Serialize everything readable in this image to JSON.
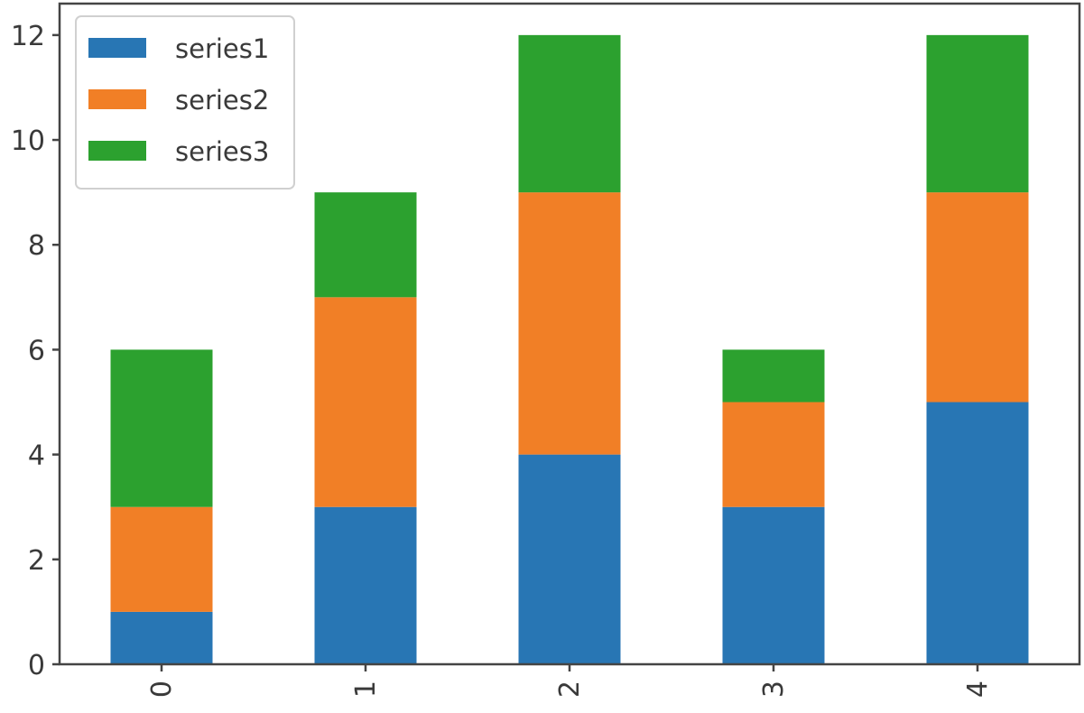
{
  "chart_data": {
    "type": "bar",
    "stacked": true,
    "categories": [
      "0",
      "1",
      "2",
      "3",
      "4"
    ],
    "series": [
      {
        "name": "series1",
        "color": "#2876b4",
        "values": [
          1,
          3,
          4,
          3,
          5
        ]
      },
      {
        "name": "series2",
        "color": "#f17f26",
        "values": [
          2,
          4,
          5,
          2,
          4
        ]
      },
      {
        "name": "series3",
        "color": "#2ca12f",
        "values": [
          3,
          2,
          3,
          1,
          3
        ]
      }
    ],
    "yticks": [
      "0",
      "2",
      "4",
      "6",
      "8",
      "10",
      "12"
    ],
    "ylim": [
      0,
      12.6
    ],
    "grid": false,
    "legend_position": "upper-left",
    "xtick_rotation": 90,
    "title": "",
    "xlabel": "",
    "ylabel": ""
  }
}
